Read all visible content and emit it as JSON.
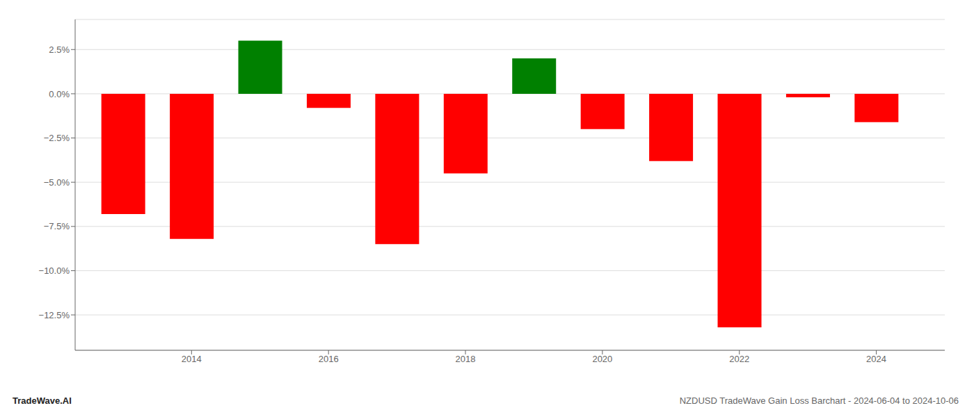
{
  "chart_data": {
    "type": "bar",
    "title": "NZDUSD TradeWave Gain Loss Barchart - 2024-06-04 to 2024-10-06",
    "annotations": [
      "TradeWave.AI"
    ],
    "x": [
      2013,
      2014,
      2015,
      2016,
      2017,
      2018,
      2019,
      2020,
      2021,
      2022,
      2023,
      2024
    ],
    "values": [
      -6.8,
      -8.2,
      3.0,
      -0.8,
      -8.5,
      -4.5,
      2.0,
      -2.0,
      -3.8,
      -13.2,
      -0.2,
      -1.6
    ],
    "colors": [
      "#ff0000",
      "#ff0000",
      "#008000",
      "#ff0000",
      "#ff0000",
      "#ff0000",
      "#008000",
      "#ff0000",
      "#ff0000",
      "#ff0000",
      "#ff0000",
      "#ff0000"
    ],
    "xlim": [
      2012.3,
      2025.0
    ],
    "xticks": [
      2014,
      2016,
      2018,
      2020,
      2022,
      2024
    ],
    "ylim": [
      -14.5,
      4.2
    ],
    "yticks": [
      {
        "value": -12.5,
        "label": "−12.5%"
      },
      {
        "value": -10.0,
        "label": "−10.0%"
      },
      {
        "value": -7.5,
        "label": "−7.5%"
      },
      {
        "value": -5.0,
        "label": "−5.0%"
      },
      {
        "value": -2.5,
        "label": "−2.5%"
      },
      {
        "value": 0.0,
        "label": "0.0%"
      },
      {
        "value": 2.5,
        "label": "2.5%"
      }
    ],
    "grid": true
  }
}
